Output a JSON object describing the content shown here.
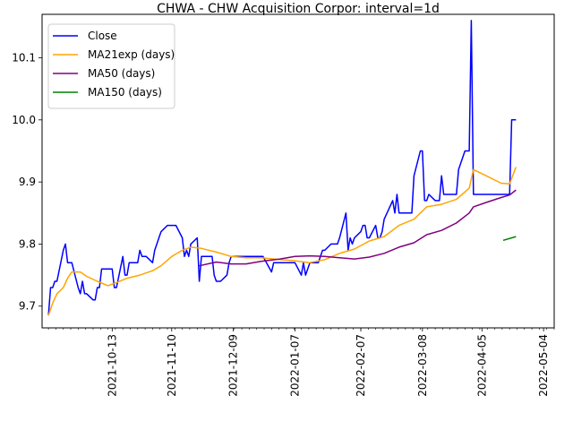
{
  "chart_data": {
    "type": "line",
    "title": "CHWA - CHW Acquisition Corpor: interval=1d",
    "xlabel": "",
    "ylabel": "",
    "x_range": [
      "2021-09-10",
      "2022-05-09"
    ],
    "ylim": [
      9.665,
      10.17
    ],
    "y_ticks": [
      9.7,
      9.8,
      9.9,
      10.0,
      10.1
    ],
    "y_tick_labels": [
      "9.7",
      "9.8",
      "9.9",
      "10.0",
      "10.1"
    ],
    "x_ticks": [
      "2021-10-13",
      "2021-11-10",
      "2021-12-09",
      "2022-01-07",
      "2022-02-07",
      "2022-03-08",
      "2022-04-05",
      "2022-05-04"
    ],
    "legend_position": "top-left",
    "grid": false,
    "series": [
      {
        "name": "Close",
        "color": "#0000ff",
        "points": [
          [
            "2021-09-13",
            9.685
          ],
          [
            "2021-09-14",
            9.73
          ],
          [
            "2021-09-15",
            9.73
          ],
          [
            "2021-09-16",
            9.74
          ],
          [
            "2021-09-17",
            9.74
          ],
          [
            "2021-09-20",
            9.79
          ],
          [
            "2021-09-21",
            9.8
          ],
          [
            "2021-09-22",
            9.77
          ],
          [
            "2021-09-23",
            9.77
          ],
          [
            "2021-09-24",
            9.77
          ],
          [
            "2021-09-27",
            9.73
          ],
          [
            "2021-09-28",
            9.72
          ],
          [
            "2021-09-29",
            9.74
          ],
          [
            "2021-09-30",
            9.72
          ],
          [
            "2021-10-01",
            9.72
          ],
          [
            "2021-10-04",
            9.71
          ],
          [
            "2021-10-05",
            9.71
          ],
          [
            "2021-10-06",
            9.73
          ],
          [
            "2021-10-07",
            9.73
          ],
          [
            "2021-10-08",
            9.76
          ],
          [
            "2021-10-11",
            9.76
          ],
          [
            "2021-10-12",
            9.76
          ],
          [
            "2021-10-13",
            9.76
          ],
          [
            "2021-10-14",
            9.73
          ],
          [
            "2021-10-15",
            9.73
          ],
          [
            "2021-10-18",
            9.78
          ],
          [
            "2021-10-19",
            9.75
          ],
          [
            "2021-10-20",
            9.75
          ],
          [
            "2021-10-21",
            9.77
          ],
          [
            "2021-10-22",
            9.77
          ],
          [
            "2021-10-25",
            9.77
          ],
          [
            "2021-10-26",
            9.79
          ],
          [
            "2021-10-27",
            9.78
          ],
          [
            "2021-10-28",
            9.78
          ],
          [
            "2021-10-29",
            9.78
          ],
          [
            "2021-11-01",
            9.77
          ],
          [
            "2021-11-02",
            9.79
          ],
          [
            "2021-11-03",
            9.8
          ],
          [
            "2021-11-04",
            9.81
          ],
          [
            "2021-11-05",
            9.82
          ],
          [
            "2021-11-08",
            9.83
          ],
          [
            "2021-11-09",
            9.83
          ],
          [
            "2021-11-10",
            9.83
          ],
          [
            "2021-11-11",
            9.83
          ],
          [
            "2021-11-12",
            9.83
          ],
          [
            "2021-11-15",
            9.81
          ],
          [
            "2021-11-16",
            9.78
          ],
          [
            "2021-11-17",
            9.79
          ],
          [
            "2021-11-18",
            9.78
          ],
          [
            "2021-11-19",
            9.8
          ],
          [
            "2021-11-22",
            9.81
          ],
          [
            "2021-11-23",
            9.74
          ],
          [
            "2021-11-24",
            9.78
          ],
          [
            "2021-11-26",
            9.78
          ],
          [
            "2021-11-29",
            9.78
          ],
          [
            "2021-11-30",
            9.75
          ],
          [
            "2021-12-01",
            9.74
          ],
          [
            "2021-12-02",
            9.74
          ],
          [
            "2021-12-03",
            9.74
          ],
          [
            "2021-12-06",
            9.75
          ],
          [
            "2021-12-07",
            9.77
          ],
          [
            "2021-12-08",
            9.78
          ],
          [
            "2021-12-09",
            9.78
          ],
          [
            "2021-12-10",
            9.78
          ],
          [
            "2021-12-13",
            9.78
          ],
          [
            "2021-12-14",
            9.78
          ],
          [
            "2021-12-15",
            9.78
          ],
          [
            "2021-12-16",
            9.78
          ],
          [
            "2021-12-17",
            9.78
          ],
          [
            "2021-12-20",
            9.78
          ],
          [
            "2021-12-21",
            9.78
          ],
          [
            "2021-12-22",
            9.78
          ],
          [
            "2021-12-23",
            9.78
          ],
          [
            "2021-12-27",
            9.755
          ],
          [
            "2021-12-28",
            9.77
          ],
          [
            "2021-12-29",
            9.77
          ],
          [
            "2021-12-30",
            9.77
          ],
          [
            "2021-12-31",
            9.77
          ],
          [
            "2022-01-03",
            9.77
          ],
          [
            "2022-01-04",
            9.77
          ],
          [
            "2022-01-05",
            9.77
          ],
          [
            "2022-01-06",
            9.77
          ],
          [
            "2022-01-07",
            9.77
          ],
          [
            "2022-01-10",
            9.75
          ],
          [
            "2022-01-11",
            9.77
          ],
          [
            "2022-01-12",
            9.75
          ],
          [
            "2022-01-13",
            9.76
          ],
          [
            "2022-01-14",
            9.77
          ],
          [
            "2022-01-18",
            9.77
          ],
          [
            "2022-01-19",
            9.78
          ],
          [
            "2022-01-20",
            9.79
          ],
          [
            "2022-01-21",
            9.79
          ],
          [
            "2022-01-24",
            9.8
          ],
          [
            "2022-01-25",
            9.8
          ],
          [
            "2022-01-26",
            9.8
          ],
          [
            "2022-01-27",
            9.8
          ],
          [
            "2022-01-28",
            9.81
          ],
          [
            "2022-01-31",
            9.85
          ],
          [
            "2022-02-01",
            9.79
          ],
          [
            "2022-02-02",
            9.81
          ],
          [
            "2022-02-03",
            9.8
          ],
          [
            "2022-02-04",
            9.81
          ],
          [
            "2022-02-07",
            9.82
          ],
          [
            "2022-02-08",
            9.83
          ],
          [
            "2022-02-09",
            9.83
          ],
          [
            "2022-02-10",
            9.81
          ],
          [
            "2022-02-11",
            9.81
          ],
          [
            "2022-02-14",
            9.83
          ],
          [
            "2022-02-15",
            9.81
          ],
          [
            "2022-02-16",
            9.81
          ],
          [
            "2022-02-17",
            9.82
          ],
          [
            "2022-02-18",
            9.84
          ],
          [
            "2022-02-22",
            9.87
          ],
          [
            "2022-02-23",
            9.85
          ],
          [
            "2022-02-24",
            9.88
          ],
          [
            "2022-02-25",
            9.85
          ],
          [
            "2022-02-28",
            9.85
          ],
          [
            "2022-03-01",
            9.85
          ],
          [
            "2022-03-02",
            9.85
          ],
          [
            "2022-03-03",
            9.85
          ],
          [
            "2022-03-04",
            9.91
          ],
          [
            "2022-03-07",
            9.95
          ],
          [
            "2022-03-08",
            9.95
          ],
          [
            "2022-03-09",
            9.87
          ],
          [
            "2022-03-10",
            9.87
          ],
          [
            "2022-03-11",
            9.88
          ],
          [
            "2022-03-14",
            9.87
          ],
          [
            "2022-03-15",
            9.87
          ],
          [
            "2022-03-16",
            9.87
          ],
          [
            "2022-03-17",
            9.91
          ],
          [
            "2022-03-18",
            9.88
          ],
          [
            "2022-03-21",
            9.88
          ],
          [
            "2022-03-22",
            9.88
          ],
          [
            "2022-03-23",
            9.88
          ],
          [
            "2022-03-24",
            9.88
          ],
          [
            "2022-03-25",
            9.92
          ],
          [
            "2022-03-28",
            9.95
          ],
          [
            "2022-03-29",
            9.95
          ],
          [
            "2022-03-30",
            9.95
          ],
          [
            "2022-03-31",
            10.16
          ],
          [
            "2022-04-01",
            9.88
          ],
          [
            "2022-04-04",
            9.88
          ],
          [
            "2022-04-05",
            9.88
          ],
          [
            "2022-04-06",
            9.88
          ],
          [
            "2022-04-07",
            9.88
          ],
          [
            "2022-04-08",
            9.88
          ],
          [
            "2022-04-11",
            9.88
          ],
          [
            "2022-04-12",
            9.88
          ],
          [
            "2022-04-13",
            9.88
          ],
          [
            "2022-04-14",
            9.88
          ],
          [
            "2022-04-18",
            9.88
          ],
          [
            "2022-04-19",
            10.0
          ],
          [
            "2022-04-20",
            10.0
          ],
          [
            "2022-04-21",
            10.0
          ]
        ]
      },
      {
        "name": "MA21exp (days)",
        "color": "#ffa500",
        "points": [
          [
            "2021-09-13",
            9.685
          ],
          [
            "2021-09-15",
            9.705
          ],
          [
            "2021-09-17",
            9.72
          ],
          [
            "2021-09-20",
            9.73
          ],
          [
            "2021-09-22",
            9.745
          ],
          [
            "2021-09-24",
            9.755
          ],
          [
            "2021-09-28",
            9.755
          ],
          [
            "2021-10-01",
            9.748
          ],
          [
            "2021-10-06",
            9.74
          ],
          [
            "2021-10-11",
            9.733
          ],
          [
            "2021-10-15",
            9.738
          ],
          [
            "2021-10-20",
            9.745
          ],
          [
            "2021-10-26",
            9.75
          ],
          [
            "2021-11-01",
            9.757
          ],
          [
            "2021-11-05",
            9.765
          ],
          [
            "2021-11-10",
            9.78
          ],
          [
            "2021-11-15",
            9.79
          ],
          [
            "2021-11-19",
            9.795
          ],
          [
            "2021-11-24",
            9.793
          ],
          [
            "2021-12-01",
            9.787
          ],
          [
            "2021-12-08",
            9.78
          ],
          [
            "2021-12-15",
            9.778
          ],
          [
            "2021-12-22",
            9.778
          ],
          [
            "2021-12-31",
            9.775
          ],
          [
            "2022-01-07",
            9.773
          ],
          [
            "2022-01-14",
            9.77
          ],
          [
            "2022-01-21",
            9.775
          ],
          [
            "2022-01-28",
            9.785
          ],
          [
            "2022-02-04",
            9.792
          ],
          [
            "2022-02-11",
            9.805
          ],
          [
            "2022-02-18",
            9.812
          ],
          [
            "2022-02-25",
            9.83
          ],
          [
            "2022-03-04",
            9.84
          ],
          [
            "2022-03-10",
            9.86
          ],
          [
            "2022-03-17",
            9.864
          ],
          [
            "2022-03-24",
            9.872
          ],
          [
            "2022-03-30",
            9.89
          ],
          [
            "2022-04-01",
            9.92
          ],
          [
            "2022-04-07",
            9.91
          ],
          [
            "2022-04-14",
            9.898
          ],
          [
            "2022-04-18",
            9.897
          ],
          [
            "2022-04-21",
            9.924
          ]
        ]
      },
      {
        "name": "MA50 (days)",
        "color": "#800080",
        "points": [
          [
            "2021-11-23",
            9.765
          ],
          [
            "2021-12-01",
            9.771
          ],
          [
            "2021-12-08",
            9.768
          ],
          [
            "2021-12-15",
            9.768
          ],
          [
            "2021-12-22",
            9.772
          ],
          [
            "2021-12-31",
            9.776
          ],
          [
            "2022-01-07",
            9.78
          ],
          [
            "2022-01-14",
            9.781
          ],
          [
            "2022-01-21",
            9.78
          ],
          [
            "2022-01-28",
            9.778
          ],
          [
            "2022-02-04",
            9.776
          ],
          [
            "2022-02-11",
            9.779
          ],
          [
            "2022-02-18",
            9.785
          ],
          [
            "2022-02-25",
            9.795
          ],
          [
            "2022-03-04",
            9.802
          ],
          [
            "2022-03-10",
            9.815
          ],
          [
            "2022-03-17",
            9.822
          ],
          [
            "2022-03-24",
            9.834
          ],
          [
            "2022-03-30",
            9.85
          ],
          [
            "2022-04-01",
            9.86
          ],
          [
            "2022-04-07",
            9.867
          ],
          [
            "2022-04-14",
            9.875
          ],
          [
            "2022-04-18",
            9.879
          ],
          [
            "2022-04-21",
            9.887
          ]
        ]
      },
      {
        "name": "MA150 (days)",
        "color": "#008000",
        "points": [
          [
            "2022-04-15",
            9.806
          ],
          [
            "2022-04-21",
            9.812
          ]
        ]
      }
    ]
  }
}
